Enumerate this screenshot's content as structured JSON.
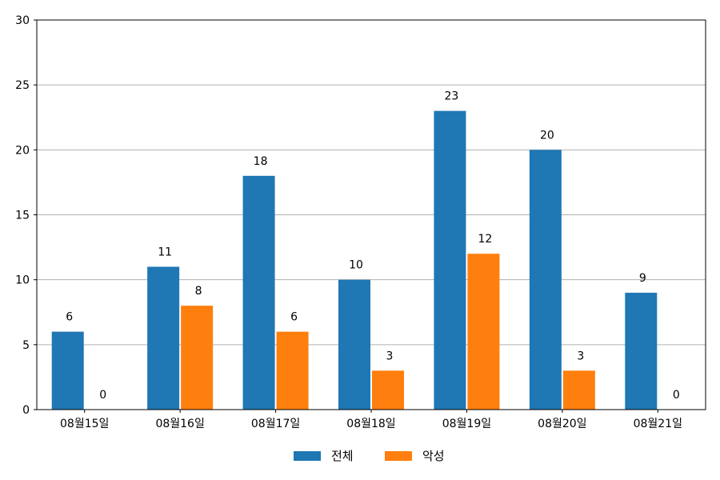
{
  "chart_data": {
    "type": "bar",
    "categories": [
      "08월15일",
      "08월16일",
      "08월17일",
      "08월18일",
      "08월19일",
      "08월20일",
      "08월21일"
    ],
    "series": [
      {
        "name": "전체",
        "values": [
          6,
          11,
          18,
          10,
          23,
          20,
          9
        ],
        "color": "#1f77b4"
      },
      {
        "name": "악성",
        "values": [
          0,
          8,
          6,
          3,
          12,
          3,
          0
        ],
        "color": "#ff7f0e"
      }
    ],
    "title": "",
    "xlabel": "",
    "ylabel": "",
    "ylim": [
      0,
      30
    ],
    "yticks": [
      0,
      5,
      10,
      15,
      20,
      25,
      30
    ],
    "grid": "horizontal",
    "legend": "bottom-center"
  }
}
